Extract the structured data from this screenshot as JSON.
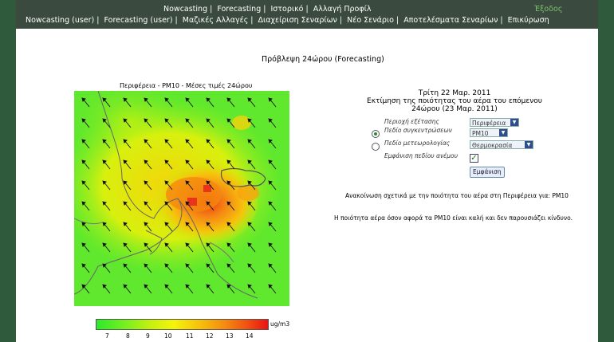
{
  "menu": {
    "row1": [
      "Nowcasting",
      "Forecasting",
      "Ιστορικό",
      "Αλλαγή Προφίλ"
    ],
    "row2": [
      "Nowcasting (user)",
      "Forecasting (user)",
      "Μαζικές Αλλαγές",
      "Διαχείριση Σεναρίων",
      "Νέο Σενάριο",
      "Αποτελέσματα Σεναρίων",
      "Επικύρωση"
    ],
    "logout": "Έξοδος"
  },
  "page_title": "Πρόβλεψη 24ώρου (Forecasting)",
  "map": {
    "title": "Περιφέρεια - PM10 - Μέσες τιμές 24ώρου",
    "unit": "ug/m3",
    "colorbar_ticks": [
      "7",
      "8",
      "9",
      "10",
      "11",
      "12",
      "13",
      "14"
    ]
  },
  "forecast": {
    "date_line": "Τρίτη 22 Μαρ. 2011",
    "heading_line1": "Εκτίμηση της ποιότητας του αέρα του επόμενου",
    "heading_line2": "24ώρου (23 Μαρ. 2011)"
  },
  "form": {
    "area_label": "Περιοχή εξέτασης",
    "area_value": "Περιφέρεια",
    "pollutant_label": "Πεδίο συγκεντρώσεων",
    "pollutant_value": "PM10",
    "meteo_label": "Πεδίο μετεωρολογίας",
    "meteo_value": "Θερμοκρασία",
    "wind_label": "Εμφάνιση πεδίου ανέμου",
    "show_button": "Εμφάνιση"
  },
  "announcement": "Ανακοίνωση σχετικά με την ποιότητα του αέρα στη Περιφέρεια για: PM10",
  "quality_text": "Η ποιότητα αέρα όσον αφορά τα PM10 είναι καλή και δεν παρουσιάζει κίνδυνο.",
  "colors": {
    "frame": "#2f5b3c",
    "topbar": "#3a4a3e",
    "logout": "#7dc26b",
    "accent_button": "#2f4d8a"
  }
}
